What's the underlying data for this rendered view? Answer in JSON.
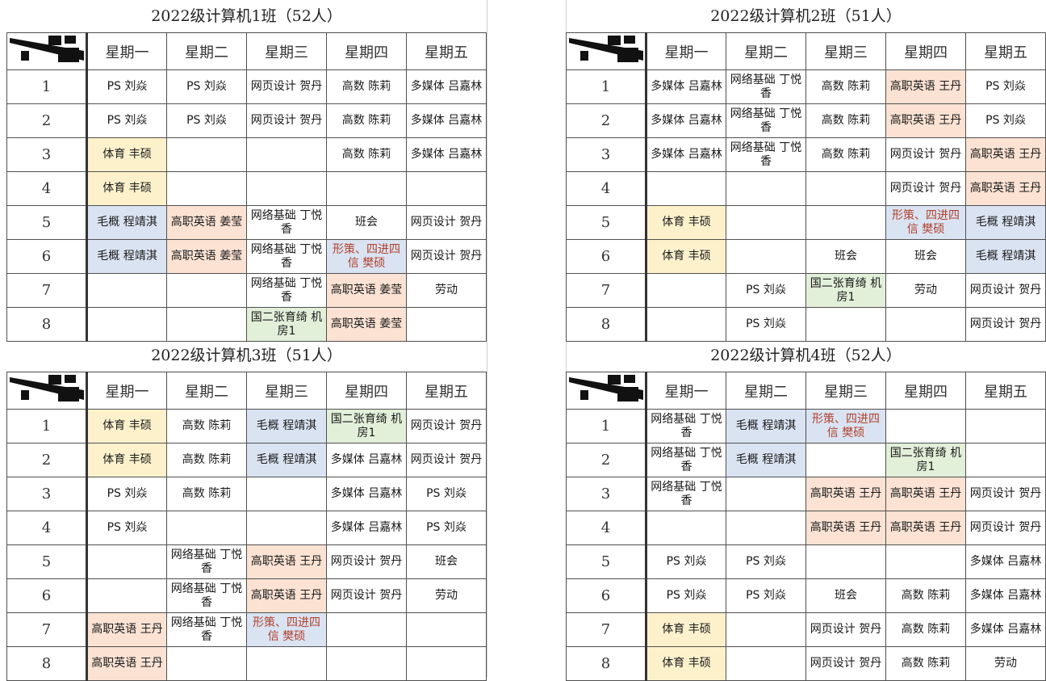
{
  "days": [
    "星期一",
    "星期二",
    "星期三",
    "星期四",
    "星期五"
  ],
  "periods": [
    "1",
    "2",
    "3",
    "4",
    "5",
    "6",
    "7",
    "8"
  ],
  "colors": {
    "yellow": "#fdf1cc",
    "blue": "#dae3f2",
    "orange": "#fbe2d3",
    "green": "#e2efd9",
    "red_text": "#b0412b"
  },
  "panels": [
    {
      "title": "2022级计算机1班（52人）",
      "rows": [
        [
          {
            "t": "PS 刘焱"
          },
          {
            "t": "PS 刘焱"
          },
          {
            "t": "网页设计 贺丹"
          },
          {
            "t": "高数 陈莉"
          },
          {
            "t": "多媒体 吕嘉林"
          }
        ],
        [
          {
            "t": "PS 刘焱"
          },
          {
            "t": "PS 刘焱"
          },
          {
            "t": "网页设计 贺丹"
          },
          {
            "t": "高数 陈莉"
          },
          {
            "t": "多媒体 吕嘉林"
          }
        ],
        [
          {
            "t": "体育 丰硕",
            "c": "yellow"
          },
          {
            "t": ""
          },
          {
            "t": ""
          },
          {
            "t": "高数 陈莉"
          },
          {
            "t": "多媒体 吕嘉林"
          }
        ],
        [
          {
            "t": "体育 丰硕",
            "c": "yellow"
          },
          {
            "t": ""
          },
          {
            "t": ""
          },
          {
            "t": ""
          },
          {
            "t": ""
          }
        ],
        [
          {
            "t": "毛概 程靖淇",
            "c": "blue"
          },
          {
            "t": "高职英语 姜莹",
            "c": "orange"
          },
          {
            "t": "网络基础 丁悦香"
          },
          {
            "t": "班会"
          },
          {
            "t": "网页设计 贺丹"
          }
        ],
        [
          {
            "t": "毛概 程靖淇",
            "c": "blue"
          },
          {
            "t": "高职英语 姜莹",
            "c": "orange"
          },
          {
            "t": "网络基础 丁悦香"
          },
          {
            "t": "形策、四进四信 樊硕",
            "c": "blue",
            "red": true
          },
          {
            "t": "网页设计 贺丹"
          }
        ],
        [
          {
            "t": ""
          },
          {
            "t": ""
          },
          {
            "t": "网络基础 丁悦香"
          },
          {
            "t": "高职英语 姜莹",
            "c": "orange"
          },
          {
            "t": "劳动"
          }
        ],
        [
          {
            "t": ""
          },
          {
            "t": ""
          },
          {
            "t": "国二张育绮 机房1",
            "c": "green"
          },
          {
            "t": "高职英语 姜莹",
            "c": "orange"
          },
          {
            "t": ""
          }
        ]
      ]
    },
    {
      "title": "2022级计算机2班（51人）",
      "rows": [
        [
          {
            "t": "多媒体 吕嘉林"
          },
          {
            "t": "网络基础 丁悦香"
          },
          {
            "t": "高数 陈莉"
          },
          {
            "t": "高职英语 王丹",
            "c": "orange"
          },
          {
            "t": "PS 刘焱"
          }
        ],
        [
          {
            "t": "多媒体 吕嘉林"
          },
          {
            "t": "网络基础 丁悦香"
          },
          {
            "t": "高数 陈莉"
          },
          {
            "t": "高职英语 王丹",
            "c": "orange"
          },
          {
            "t": "PS 刘焱"
          }
        ],
        [
          {
            "t": "多媒体 吕嘉林"
          },
          {
            "t": "网络基础 丁悦香"
          },
          {
            "t": "高数 陈莉"
          },
          {
            "t": "网页设计 贺丹"
          },
          {
            "t": "高职英语 王丹",
            "c": "orange"
          }
        ],
        [
          {
            "t": ""
          },
          {
            "t": ""
          },
          {
            "t": ""
          },
          {
            "t": "网页设计 贺丹"
          },
          {
            "t": "高职英语 王丹",
            "c": "orange"
          }
        ],
        [
          {
            "t": "体育 丰硕",
            "c": "yellow"
          },
          {
            "t": ""
          },
          {
            "t": ""
          },
          {
            "t": "形策、四进四信 樊硕",
            "c": "blue",
            "red": true
          },
          {
            "t": "毛概 程靖淇",
            "c": "blue"
          }
        ],
        [
          {
            "t": "体育 丰硕",
            "c": "yellow"
          },
          {
            "t": ""
          },
          {
            "t": "班会"
          },
          {
            "t": "班会"
          },
          {
            "t": "毛概 程靖淇",
            "c": "blue"
          }
        ],
        [
          {
            "t": ""
          },
          {
            "t": "PS 刘焱"
          },
          {
            "t": "国二张育绮 机房1",
            "c": "green"
          },
          {
            "t": "劳动"
          },
          {
            "t": "网页设计 贺丹"
          }
        ],
        [
          {
            "t": ""
          },
          {
            "t": "PS 刘焱"
          },
          {
            "t": ""
          },
          {
            "t": ""
          },
          {
            "t": "网页设计 贺丹"
          }
        ]
      ]
    },
    {
      "title": "2022级计算机3班（51人）",
      "rows": [
        [
          {
            "t": "体育 丰硕",
            "c": "yellow"
          },
          {
            "t": "高数 陈莉"
          },
          {
            "t": "毛概 程靖淇",
            "c": "blue"
          },
          {
            "t": "国二张育绮 机房1",
            "c": "green"
          },
          {
            "t": "网页设计 贺丹"
          }
        ],
        [
          {
            "t": "体育 丰硕",
            "c": "yellow"
          },
          {
            "t": "高数 陈莉"
          },
          {
            "t": "毛概 程靖淇",
            "c": "blue"
          },
          {
            "t": "多媒体 吕嘉林"
          },
          {
            "t": "网页设计 贺丹"
          }
        ],
        [
          {
            "t": "PS 刘焱"
          },
          {
            "t": "高数 陈莉"
          },
          {
            "t": ""
          },
          {
            "t": "多媒体 吕嘉林"
          },
          {
            "t": "PS 刘焱"
          }
        ],
        [
          {
            "t": "PS 刘焱"
          },
          {
            "t": ""
          },
          {
            "t": ""
          },
          {
            "t": "多媒体 吕嘉林"
          },
          {
            "t": "PS 刘焱"
          }
        ],
        [
          {
            "t": ""
          },
          {
            "t": "网络基础 丁悦香"
          },
          {
            "t": "高职英语 王丹",
            "c": "orange"
          },
          {
            "t": "网页设计 贺丹"
          },
          {
            "t": "班会"
          }
        ],
        [
          {
            "t": ""
          },
          {
            "t": "网络基础 丁悦香"
          },
          {
            "t": "高职英语 王丹",
            "c": "orange"
          },
          {
            "t": "网页设计 贺丹"
          },
          {
            "t": "劳动"
          }
        ],
        [
          {
            "t": "高职英语 王丹",
            "c": "orange"
          },
          {
            "t": "网络基础 丁悦香"
          },
          {
            "t": "形策、四进四信 樊硕",
            "c": "blue",
            "red": true
          },
          {
            "t": ""
          },
          {
            "t": ""
          }
        ],
        [
          {
            "t": "高职英语 王丹",
            "c": "orange"
          },
          {
            "t": ""
          },
          {
            "t": ""
          },
          {
            "t": ""
          },
          {
            "t": ""
          }
        ]
      ]
    },
    {
      "title": "2022级计算机4班（52人）",
      "rows": [
        [
          {
            "t": "网络基础 丁悦香"
          },
          {
            "t": "毛概 程靖淇",
            "c": "blue"
          },
          {
            "t": "形策、四进四信 樊硕",
            "c": "blue",
            "red": true
          },
          {
            "t": ""
          },
          {
            "t": ""
          }
        ],
        [
          {
            "t": "网络基础 丁悦香"
          },
          {
            "t": "毛概 程靖淇",
            "c": "blue"
          },
          {
            "t": ""
          },
          {
            "t": "国二张育绮 机房1",
            "c": "green"
          },
          {
            "t": ""
          }
        ],
        [
          {
            "t": "网络基础 丁悦香"
          },
          {
            "t": ""
          },
          {
            "t": "高职英语 王丹",
            "c": "orange"
          },
          {
            "t": "高职英语 王丹",
            "c": "orange"
          },
          {
            "t": "网页设计 贺丹"
          }
        ],
        [
          {
            "t": ""
          },
          {
            "t": ""
          },
          {
            "t": "高职英语 王丹",
            "c": "orange"
          },
          {
            "t": "高职英语 王丹",
            "c": "orange"
          },
          {
            "t": "网页设计 贺丹"
          }
        ],
        [
          {
            "t": "PS 刘焱"
          },
          {
            "t": "PS 刘焱"
          },
          {
            "t": ""
          },
          {
            "t": ""
          },
          {
            "t": "多媒体 吕嘉林"
          }
        ],
        [
          {
            "t": "PS 刘焱"
          },
          {
            "t": "PS 刘焱"
          },
          {
            "t": "班会"
          },
          {
            "t": "高数 陈莉"
          },
          {
            "t": "多媒体 吕嘉林"
          }
        ],
        [
          {
            "t": "体育 丰硕",
            "c": "yellow"
          },
          {
            "t": ""
          },
          {
            "t": "网页设计 贺丹"
          },
          {
            "t": "高数 陈莉"
          },
          {
            "t": "多媒体 吕嘉林"
          }
        ],
        [
          {
            "t": "体育 丰硕",
            "c": "yellow"
          },
          {
            "t": ""
          },
          {
            "t": "网页设计 贺丹"
          },
          {
            "t": "高数 陈莉"
          },
          {
            "t": "劳动"
          }
        ]
      ]
    }
  ]
}
